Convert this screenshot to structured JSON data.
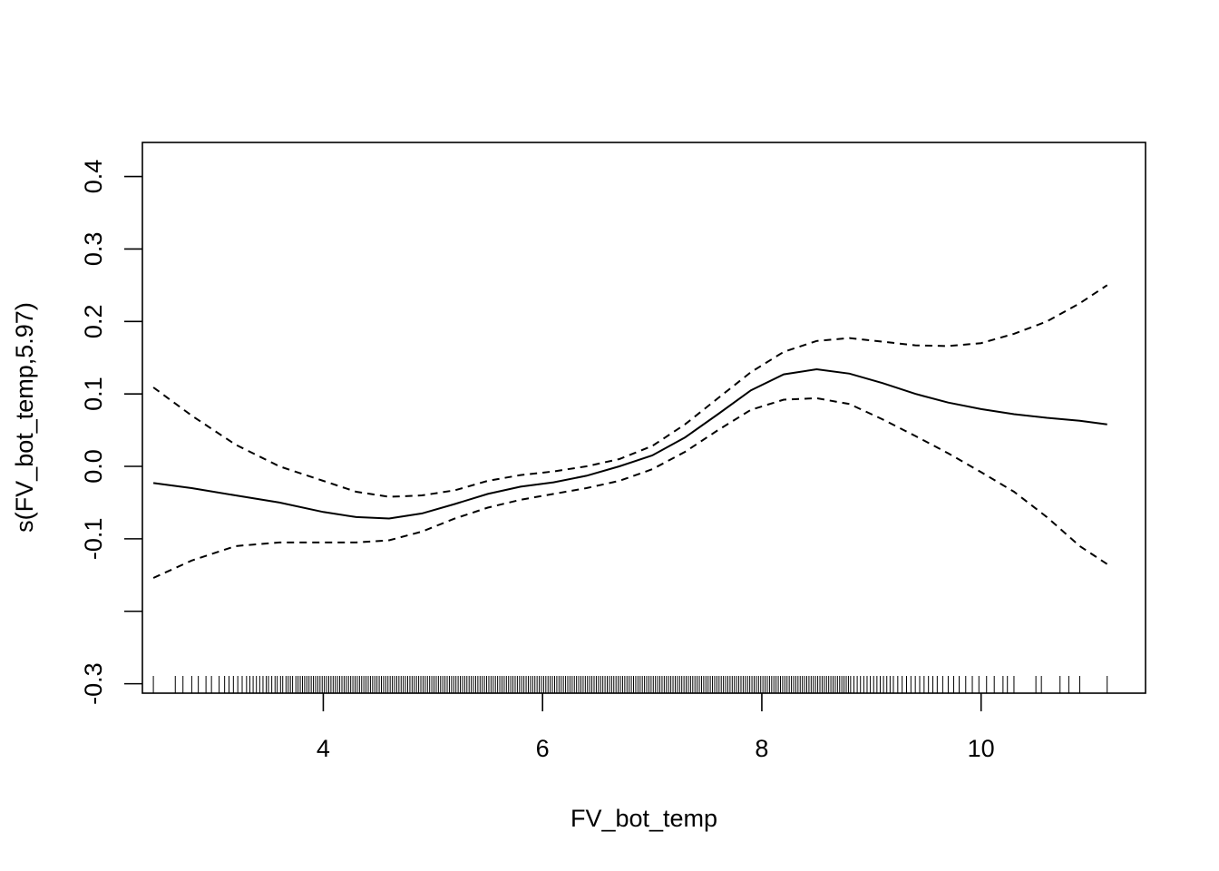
{
  "chart_data": {
    "type": "line",
    "title": "",
    "xlabel": "FV_bot_temp",
    "ylabel": "s(FV_bot_temp,5.97)",
    "xlim": [
      2.35,
      11.5
    ],
    "ylim": [
      -0.313,
      0.447
    ],
    "x_ticks": [
      4,
      6,
      8,
      10
    ],
    "x_tick_labels": [
      "4",
      "6",
      "8",
      "10"
    ],
    "y_ticks": [
      -0.3,
      -0.2,
      -0.1,
      0.0,
      0.1,
      0.2,
      0.3,
      0.4
    ],
    "y_tick_labels": [
      "-0.3",
      "",
      "-0.1",
      "0.0",
      "0.1",
      "0.2",
      "0.3",
      "0.4"
    ],
    "grid": false,
    "series": [
      {
        "style": "solid",
        "x": [
          2.45,
          2.8,
          3.2,
          3.6,
          4.0,
          4.3,
          4.6,
          4.9,
          5.2,
          5.5,
          5.8,
          6.1,
          6.4,
          6.7,
          7.0,
          7.3,
          7.6,
          7.9,
          8.2,
          8.5,
          8.8,
          9.1,
          9.4,
          9.7,
          10.0,
          10.3,
          10.6,
          10.9,
          11.15
        ],
        "y": [
          -0.023,
          -0.03,
          -0.04,
          -0.05,
          -0.063,
          -0.07,
          -0.072,
          -0.065,
          -0.052,
          -0.038,
          -0.028,
          -0.022,
          -0.013,
          0.0,
          0.015,
          0.04,
          0.072,
          0.105,
          0.127,
          0.134,
          0.128,
          0.115,
          0.1,
          0.088,
          0.079,
          0.072,
          0.067,
          0.063,
          0.058
        ]
      },
      {
        "style": "dashed",
        "x": [
          2.45,
          2.8,
          3.2,
          3.6,
          4.0,
          4.3,
          4.6,
          4.9,
          5.2,
          5.5,
          5.8,
          6.1,
          6.4,
          6.7,
          7.0,
          7.3,
          7.6,
          7.9,
          8.2,
          8.5,
          8.8,
          9.1,
          9.4,
          9.7,
          10.0,
          10.3,
          10.6,
          10.9,
          11.15
        ],
        "y": [
          0.109,
          0.07,
          0.03,
          0.0,
          -0.02,
          -0.035,
          -0.042,
          -0.04,
          -0.033,
          -0.02,
          -0.012,
          -0.007,
          0.0,
          0.01,
          0.028,
          0.058,
          0.094,
          0.13,
          0.158,
          0.173,
          0.177,
          0.172,
          0.167,
          0.166,
          0.17,
          0.183,
          0.2,
          0.225,
          0.25
        ]
      },
      {
        "style": "dashed",
        "x": [
          2.45,
          2.8,
          3.2,
          3.6,
          4.0,
          4.3,
          4.6,
          4.9,
          5.2,
          5.5,
          5.8,
          6.1,
          6.4,
          6.7,
          7.0,
          7.3,
          7.6,
          7.9,
          8.2,
          8.5,
          8.8,
          9.1,
          9.4,
          9.7,
          10.0,
          10.3,
          10.6,
          10.9,
          11.15
        ],
        "y": [
          -0.154,
          -0.13,
          -0.11,
          -0.105,
          -0.105,
          -0.105,
          -0.102,
          -0.09,
          -0.072,
          -0.057,
          -0.046,
          -0.038,
          -0.03,
          -0.02,
          -0.004,
          0.02,
          0.05,
          0.078,
          0.092,
          0.094,
          0.086,
          0.065,
          0.042,
          0.018,
          -0.008,
          -0.035,
          -0.07,
          -0.11,
          -0.135
        ]
      }
    ],
    "rug": [
      2.45,
      2.65,
      2.72,
      2.8,
      2.86,
      2.93,
      2.98,
      3.05,
      3.1,
      3.14,
      3.18,
      3.22,
      3.26,
      3.3,
      3.33,
      3.36,
      3.39,
      3.42,
      3.45,
      3.48,
      3.5,
      3.53,
      3.56,
      3.58,
      3.61,
      3.63,
      3.66,
      3.68,
      3.7,
      3.72,
      3.75,
      3.77,
      3.79,
      3.81,
      3.83,
      3.85,
      3.87,
      3.89,
      3.91,
      3.93,
      3.95,
      3.97,
      3.99,
      4.01,
      4.03,
      4.05,
      4.07,
      4.09,
      4.11,
      4.13,
      4.15,
      4.17,
      4.19,
      4.21,
      4.23,
      4.25,
      4.27,
      4.29,
      4.31,
      4.33,
      4.35,
      4.37,
      4.39,
      4.41,
      4.43,
      4.45,
      4.47,
      4.49,
      4.51,
      4.53,
      4.55,
      4.57,
      4.59,
      4.61,
      4.63,
      4.65,
      4.67,
      4.69,
      4.71,
      4.73,
      4.75,
      4.77,
      4.79,
      4.81,
      4.83,
      4.85,
      4.87,
      4.89,
      4.91,
      4.93,
      4.95,
      4.97,
      4.99,
      5.01,
      5.03,
      5.05,
      5.07,
      5.09,
      5.11,
      5.13,
      5.15,
      5.17,
      5.19,
      5.21,
      5.23,
      5.25,
      5.27,
      5.29,
      5.31,
      5.33,
      5.35,
      5.37,
      5.39,
      5.41,
      5.43,
      5.45,
      5.47,
      5.49,
      5.51,
      5.53,
      5.55,
      5.57,
      5.59,
      5.61,
      5.63,
      5.65,
      5.67,
      5.69,
      5.71,
      5.73,
      5.75,
      5.77,
      5.79,
      5.81,
      5.83,
      5.85,
      5.87,
      5.89,
      5.91,
      5.93,
      5.95,
      5.97,
      5.99,
      6.01,
      6.03,
      6.05,
      6.07,
      6.09,
      6.11,
      6.13,
      6.15,
      6.17,
      6.19,
      6.21,
      6.23,
      6.25,
      6.27,
      6.29,
      6.31,
      6.33,
      6.35,
      6.37,
      6.39,
      6.41,
      6.43,
      6.45,
      6.47,
      6.49,
      6.51,
      6.53,
      6.55,
      6.57,
      6.59,
      6.61,
      6.63,
      6.65,
      6.67,
      6.69,
      6.71,
      6.73,
      6.75,
      6.77,
      6.79,
      6.81,
      6.83,
      6.85,
      6.87,
      6.89,
      6.91,
      6.93,
      6.95,
      6.97,
      6.99,
      7.01,
      7.03,
      7.05,
      7.07,
      7.09,
      7.11,
      7.13,
      7.15,
      7.17,
      7.19,
      7.21,
      7.23,
      7.25,
      7.27,
      7.29,
      7.31,
      7.33,
      7.35,
      7.37,
      7.39,
      7.41,
      7.43,
      7.45,
      7.47,
      7.49,
      7.51,
      7.53,
      7.55,
      7.57,
      7.59,
      7.61,
      7.63,
      7.65,
      7.67,
      7.69,
      7.71,
      7.73,
      7.75,
      7.77,
      7.79,
      7.81,
      7.83,
      7.85,
      7.87,
      7.89,
      7.91,
      7.93,
      7.95,
      7.97,
      7.99,
      8.01,
      8.03,
      8.05,
      8.07,
      8.09,
      8.11,
      8.13,
      8.15,
      8.17,
      8.19,
      8.21,
      8.23,
      8.25,
      8.27,
      8.29,
      8.31,
      8.33,
      8.35,
      8.37,
      8.39,
      8.41,
      8.43,
      8.45,
      8.47,
      8.49,
      8.51,
      8.53,
      8.55,
      8.57,
      8.59,
      8.61,
      8.63,
      8.65,
      8.67,
      8.69,
      8.71,
      8.73,
      8.75,
      8.77,
      8.79,
      8.81,
      8.84,
      8.87,
      8.9,
      8.93,
      8.96,
      8.99,
      9.02,
      9.05,
      9.08,
      9.11,
      9.14,
      9.17,
      9.2,
      9.24,
      9.28,
      9.32,
      9.36,
      9.4,
      9.44,
      9.48,
      9.52,
      9.56,
      9.6,
      9.65,
      9.7,
      9.75,
      9.8,
      9.86,
      9.92,
      9.98,
      10.05,
      10.12,
      10.2,
      10.24,
      10.3,
      10.5,
      10.55,
      10.72,
      10.8,
      10.9,
      11.15
    ]
  }
}
